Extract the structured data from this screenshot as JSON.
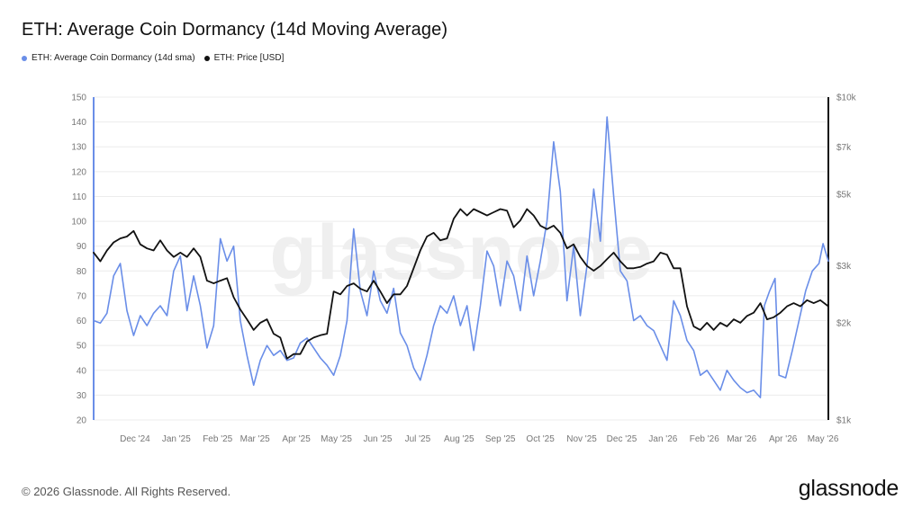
{
  "title": "ETH: Average Coin Dormancy (14d Moving Average)",
  "legend": {
    "dormancy_label": "ETH: Average Coin Dormancy (14d sma)",
    "price_label": "ETH: Price [USD]"
  },
  "colors": {
    "dormancy": "#6a8ee8",
    "price": "#111111",
    "grid": "#ececec",
    "axis_text": "#777777",
    "watermark": "#f0f0f0"
  },
  "watermark": "glassnode",
  "footer": {
    "copyright": "© 2026 Glassnode. All Rights Reserved.",
    "brand": "glassnode"
  },
  "chart_data": {
    "type": "line",
    "title": "ETH: Average Coin Dormancy (14d Moving Average)",
    "x_ticks": [
      "Dec '24",
      "Jan '25",
      "Feb '25",
      "Mar '25",
      "Apr '25",
      "May '25",
      "Jun '25",
      "Jul '25",
      "Aug '25",
      "Sep '25",
      "Oct '25",
      "Nov '25",
      "Dec '25",
      "Jan '26",
      "Feb '26",
      "Mar '26",
      "Apr '26",
      "May '26"
    ],
    "x_range": [
      "2024-11-14",
      "2026-05-19"
    ],
    "y_left": {
      "ticks": [
        20,
        30,
        40,
        50,
        60,
        70,
        80,
        90,
        100,
        110,
        120,
        130,
        140,
        150
      ],
      "range": [
        20,
        150
      ]
    },
    "y_right": {
      "scale": "log",
      "ticks": [
        1000,
        2000,
        3000,
        5000,
        7000,
        10000
      ],
      "tick_labels": [
        "$1k",
        "$2k",
        "$3k",
        "$5k",
        "$7k",
        "$10k"
      ],
      "range": [
        1000,
        10000
      ]
    },
    "grid": true,
    "legend_position": "top-left",
    "series": [
      {
        "name": "ETH: Average Coin Dormancy (14d sma)",
        "axis": "left",
        "color": "#6a8ee8",
        "points": [
          [
            "2024-11-14",
            60
          ],
          [
            "2024-11-19",
            59
          ],
          [
            "2024-11-24",
            63
          ],
          [
            "2024-11-29",
            78
          ],
          [
            "2024-12-04",
            83
          ],
          [
            "2024-12-09",
            64
          ],
          [
            "2024-12-14",
            54
          ],
          [
            "2024-12-19",
            62
          ],
          [
            "2024-12-24",
            58
          ],
          [
            "2024-12-29",
            63
          ],
          [
            "2025-01-03",
            66
          ],
          [
            "2025-01-08",
            62
          ],
          [
            "2025-01-13",
            80
          ],
          [
            "2025-01-18",
            86
          ],
          [
            "2025-01-23",
            64
          ],
          [
            "2025-01-28",
            78
          ],
          [
            "2025-02-02",
            66
          ],
          [
            "2025-02-07",
            49
          ],
          [
            "2025-02-12",
            58
          ],
          [
            "2025-02-17",
            93
          ],
          [
            "2025-02-22",
            84
          ],
          [
            "2025-02-27",
            90
          ],
          [
            "2025-03-04",
            60
          ],
          [
            "2025-03-09",
            46
          ],
          [
            "2025-03-14",
            34
          ],
          [
            "2025-03-19",
            44
          ],
          [
            "2025-03-24",
            50
          ],
          [
            "2025-03-29",
            46
          ],
          [
            "2025-04-03",
            48
          ],
          [
            "2025-04-08",
            44
          ],
          [
            "2025-04-13",
            45
          ],
          [
            "2025-04-18",
            51
          ],
          [
            "2025-04-23",
            53
          ],
          [
            "2025-04-28",
            49
          ],
          [
            "2025-05-03",
            45
          ],
          [
            "2025-05-08",
            42
          ],
          [
            "2025-05-13",
            38
          ],
          [
            "2025-05-18",
            46
          ],
          [
            "2025-05-23",
            60
          ],
          [
            "2025-05-28",
            97
          ],
          [
            "2025-06-02",
            72
          ],
          [
            "2025-06-07",
            62
          ],
          [
            "2025-06-12",
            80
          ],
          [
            "2025-06-17",
            68
          ],
          [
            "2025-06-22",
            63
          ],
          [
            "2025-06-27",
            73
          ],
          [
            "2025-07-02",
            55
          ],
          [
            "2025-07-07",
            50
          ],
          [
            "2025-07-12",
            41
          ],
          [
            "2025-07-17",
            36
          ],
          [
            "2025-07-22",
            46
          ],
          [
            "2025-07-27",
            58
          ],
          [
            "2025-08-01",
            66
          ],
          [
            "2025-08-06",
            63
          ],
          [
            "2025-08-11",
            70
          ],
          [
            "2025-08-16",
            58
          ],
          [
            "2025-08-21",
            66
          ],
          [
            "2025-08-26",
            48
          ],
          [
            "2025-08-31",
            66
          ],
          [
            "2025-09-05",
            88
          ],
          [
            "2025-09-10",
            82
          ],
          [
            "2025-09-15",
            66
          ],
          [
            "2025-09-20",
            84
          ],
          [
            "2025-09-25",
            78
          ],
          [
            "2025-09-30",
            64
          ],
          [
            "2025-10-05",
            86
          ],
          [
            "2025-10-10",
            70
          ],
          [
            "2025-10-15",
            84
          ],
          [
            "2025-10-20",
            100
          ],
          [
            "2025-10-25",
            132
          ],
          [
            "2025-10-30",
            112
          ],
          [
            "2025-11-04",
            68
          ],
          [
            "2025-11-09",
            90
          ],
          [
            "2025-11-14",
            62
          ],
          [
            "2025-11-19",
            82
          ],
          [
            "2025-11-24",
            113
          ],
          [
            "2025-11-29",
            92
          ],
          [
            "2025-12-04",
            142
          ],
          [
            "2025-12-09",
            110
          ],
          [
            "2025-12-14",
            80
          ],
          [
            "2025-12-19",
            76
          ],
          [
            "2025-12-24",
            60
          ],
          [
            "2025-12-29",
            62
          ],
          [
            "2026-01-03",
            58
          ],
          [
            "2026-01-08",
            56
          ],
          [
            "2026-01-13",
            50
          ],
          [
            "2026-01-18",
            44
          ],
          [
            "2026-01-23",
            68
          ],
          [
            "2026-01-28",
            62
          ],
          [
            "2026-02-02",
            52
          ],
          [
            "2026-02-07",
            48
          ],
          [
            "2026-02-12",
            38
          ],
          [
            "2026-02-17",
            40
          ],
          [
            "2026-02-22",
            36
          ],
          [
            "2026-02-27",
            32
          ],
          [
            "2026-03-04",
            40
          ],
          [
            "2026-03-09",
            36
          ],
          [
            "2026-03-14",
            33
          ],
          [
            "2026-03-19",
            31
          ],
          [
            "2026-03-24",
            32
          ],
          [
            "2026-03-29",
            29
          ],
          [
            "2026-04-01",
            66
          ],
          [
            "2026-04-05",
            72
          ],
          [
            "2026-04-09",
            77
          ],
          [
            "2026-04-12",
            38
          ],
          [
            "2026-04-17",
            37
          ],
          [
            "2026-04-22",
            48
          ],
          [
            "2026-04-27",
            60
          ],
          [
            "2026-05-02",
            72
          ],
          [
            "2026-05-07",
            80
          ],
          [
            "2026-05-12",
            83
          ],
          [
            "2026-05-15",
            91
          ],
          [
            "2026-05-19",
            84
          ]
        ]
      },
      {
        "name": "ETH: Price [USD]",
        "axis": "right",
        "color": "#111111",
        "points": [
          [
            "2024-11-14",
            3300
          ],
          [
            "2024-11-19",
            3100
          ],
          [
            "2024-11-24",
            3350
          ],
          [
            "2024-11-29",
            3550
          ],
          [
            "2024-12-04",
            3650
          ],
          [
            "2024-12-09",
            3700
          ],
          [
            "2024-12-14",
            3850
          ],
          [
            "2024-12-19",
            3500
          ],
          [
            "2024-12-24",
            3400
          ],
          [
            "2024-12-29",
            3350
          ],
          [
            "2025-01-03",
            3600
          ],
          [
            "2025-01-08",
            3350
          ],
          [
            "2025-01-13",
            3200
          ],
          [
            "2025-01-18",
            3300
          ],
          [
            "2025-01-23",
            3200
          ],
          [
            "2025-01-28",
            3400
          ],
          [
            "2025-02-02",
            3200
          ],
          [
            "2025-02-07",
            2700
          ],
          [
            "2025-02-12",
            2650
          ],
          [
            "2025-02-17",
            2700
          ],
          [
            "2025-02-22",
            2750
          ],
          [
            "2025-02-27",
            2400
          ],
          [
            "2025-03-04",
            2200
          ],
          [
            "2025-03-09",
            2050
          ],
          [
            "2025-03-14",
            1900
          ],
          [
            "2025-03-19",
            2000
          ],
          [
            "2025-03-24",
            2050
          ],
          [
            "2025-03-29",
            1850
          ],
          [
            "2025-04-03",
            1800
          ],
          [
            "2025-04-08",
            1550
          ],
          [
            "2025-04-13",
            1600
          ],
          [
            "2025-04-18",
            1600
          ],
          [
            "2025-04-23",
            1750
          ],
          [
            "2025-04-28",
            1800
          ],
          [
            "2025-05-03",
            1830
          ],
          [
            "2025-05-08",
            1850
          ],
          [
            "2025-05-13",
            2500
          ],
          [
            "2025-05-18",
            2450
          ],
          [
            "2025-05-23",
            2600
          ],
          [
            "2025-05-28",
            2650
          ],
          [
            "2025-06-02",
            2550
          ],
          [
            "2025-06-07",
            2500
          ],
          [
            "2025-06-12",
            2700
          ],
          [
            "2025-06-17",
            2500
          ],
          [
            "2025-06-22",
            2300
          ],
          [
            "2025-06-27",
            2450
          ],
          [
            "2025-07-02",
            2450
          ],
          [
            "2025-07-07",
            2600
          ],
          [
            "2025-07-12",
            2950
          ],
          [
            "2025-07-17",
            3350
          ],
          [
            "2025-07-22",
            3700
          ],
          [
            "2025-07-27",
            3800
          ],
          [
            "2025-08-01",
            3600
          ],
          [
            "2025-08-06",
            3650
          ],
          [
            "2025-08-11",
            4200
          ],
          [
            "2025-08-16",
            4500
          ],
          [
            "2025-08-21",
            4300
          ],
          [
            "2025-08-26",
            4500
          ],
          [
            "2025-08-31",
            4400
          ],
          [
            "2025-09-05",
            4300
          ],
          [
            "2025-09-10",
            4400
          ],
          [
            "2025-09-15",
            4500
          ],
          [
            "2025-09-20",
            4450
          ],
          [
            "2025-09-25",
            3950
          ],
          [
            "2025-09-30",
            4150
          ],
          [
            "2025-10-05",
            4500
          ],
          [
            "2025-10-10",
            4300
          ],
          [
            "2025-10-15",
            4000
          ],
          [
            "2025-10-20",
            3900
          ],
          [
            "2025-10-25",
            4000
          ],
          [
            "2025-10-30",
            3800
          ],
          [
            "2025-11-04",
            3400
          ],
          [
            "2025-11-09",
            3500
          ],
          [
            "2025-11-14",
            3200
          ],
          [
            "2025-11-19",
            3000
          ],
          [
            "2025-11-24",
            2900
          ],
          [
            "2025-11-29",
            3000
          ],
          [
            "2025-12-04",
            3150
          ],
          [
            "2025-12-09",
            3300
          ],
          [
            "2025-12-14",
            3100
          ],
          [
            "2025-12-19",
            2950
          ],
          [
            "2025-12-24",
            2950
          ],
          [
            "2025-12-29",
            2980
          ],
          [
            "2026-01-03",
            3050
          ],
          [
            "2026-01-08",
            3100
          ],
          [
            "2026-01-13",
            3300
          ],
          [
            "2026-01-18",
            3250
          ],
          [
            "2026-01-23",
            2950
          ],
          [
            "2026-01-28",
            2950
          ],
          [
            "2026-02-02",
            2250
          ],
          [
            "2026-02-07",
            1950
          ],
          [
            "2026-02-12",
            1900
          ],
          [
            "2026-02-17",
            2000
          ],
          [
            "2026-02-22",
            1900
          ],
          [
            "2026-02-27",
            2000
          ],
          [
            "2026-03-04",
            1950
          ],
          [
            "2026-03-09",
            2050
          ],
          [
            "2026-03-14",
            2000
          ],
          [
            "2026-03-19",
            2100
          ],
          [
            "2026-03-24",
            2150
          ],
          [
            "2026-03-29",
            2300
          ],
          [
            "2026-04-03",
            2050
          ],
          [
            "2026-04-08",
            2080
          ],
          [
            "2026-04-13",
            2150
          ],
          [
            "2026-04-18",
            2250
          ],
          [
            "2026-04-23",
            2300
          ],
          [
            "2026-04-28",
            2250
          ],
          [
            "2026-05-03",
            2350
          ],
          [
            "2026-05-08",
            2300
          ],
          [
            "2026-05-13",
            2350
          ],
          [
            "2026-05-19",
            2250
          ]
        ]
      }
    ]
  }
}
